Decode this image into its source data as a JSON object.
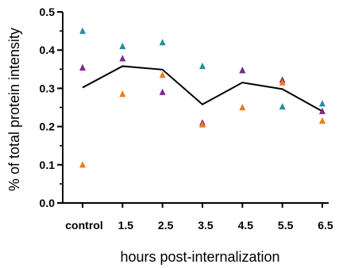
{
  "chart_data": {
    "type": "scatter",
    "title": "",
    "xlabel": "hours post-internalization",
    "ylabel": "% of total protein intensity",
    "categories": [
      "control",
      "1.5",
      "2.5",
      "3.5",
      "4.5",
      "5.5",
      "6.5"
    ],
    "ylim": [
      0,
      0.5
    ],
    "yticks": [
      "0.0",
      "0.1",
      "0.2",
      "0.3",
      "0.4",
      "0.5"
    ],
    "grid": false,
    "legend": "none",
    "marker": "triangle",
    "series": [
      {
        "color": "#2a8c9e",
        "values": [
          0.45,
          0.41,
          0.42,
          0.358,
          0.347,
          0.252,
          0.26
        ]
      },
      {
        "color": "#7a2a8a",
        "values": [
          0.354,
          0.378,
          0.29,
          0.21,
          0.347,
          0.322,
          0.24
        ]
      },
      {
        "color": "#f07a1a",
        "values": [
          0.1,
          0.285,
          0.335,
          0.205,
          0.25,
          0.315,
          0.215
        ]
      }
    ],
    "mean_line": {
      "color": "#000000",
      "values": [
        0.302,
        0.358,
        0.349,
        0.258,
        0.315,
        0.298,
        0.24
      ]
    }
  }
}
